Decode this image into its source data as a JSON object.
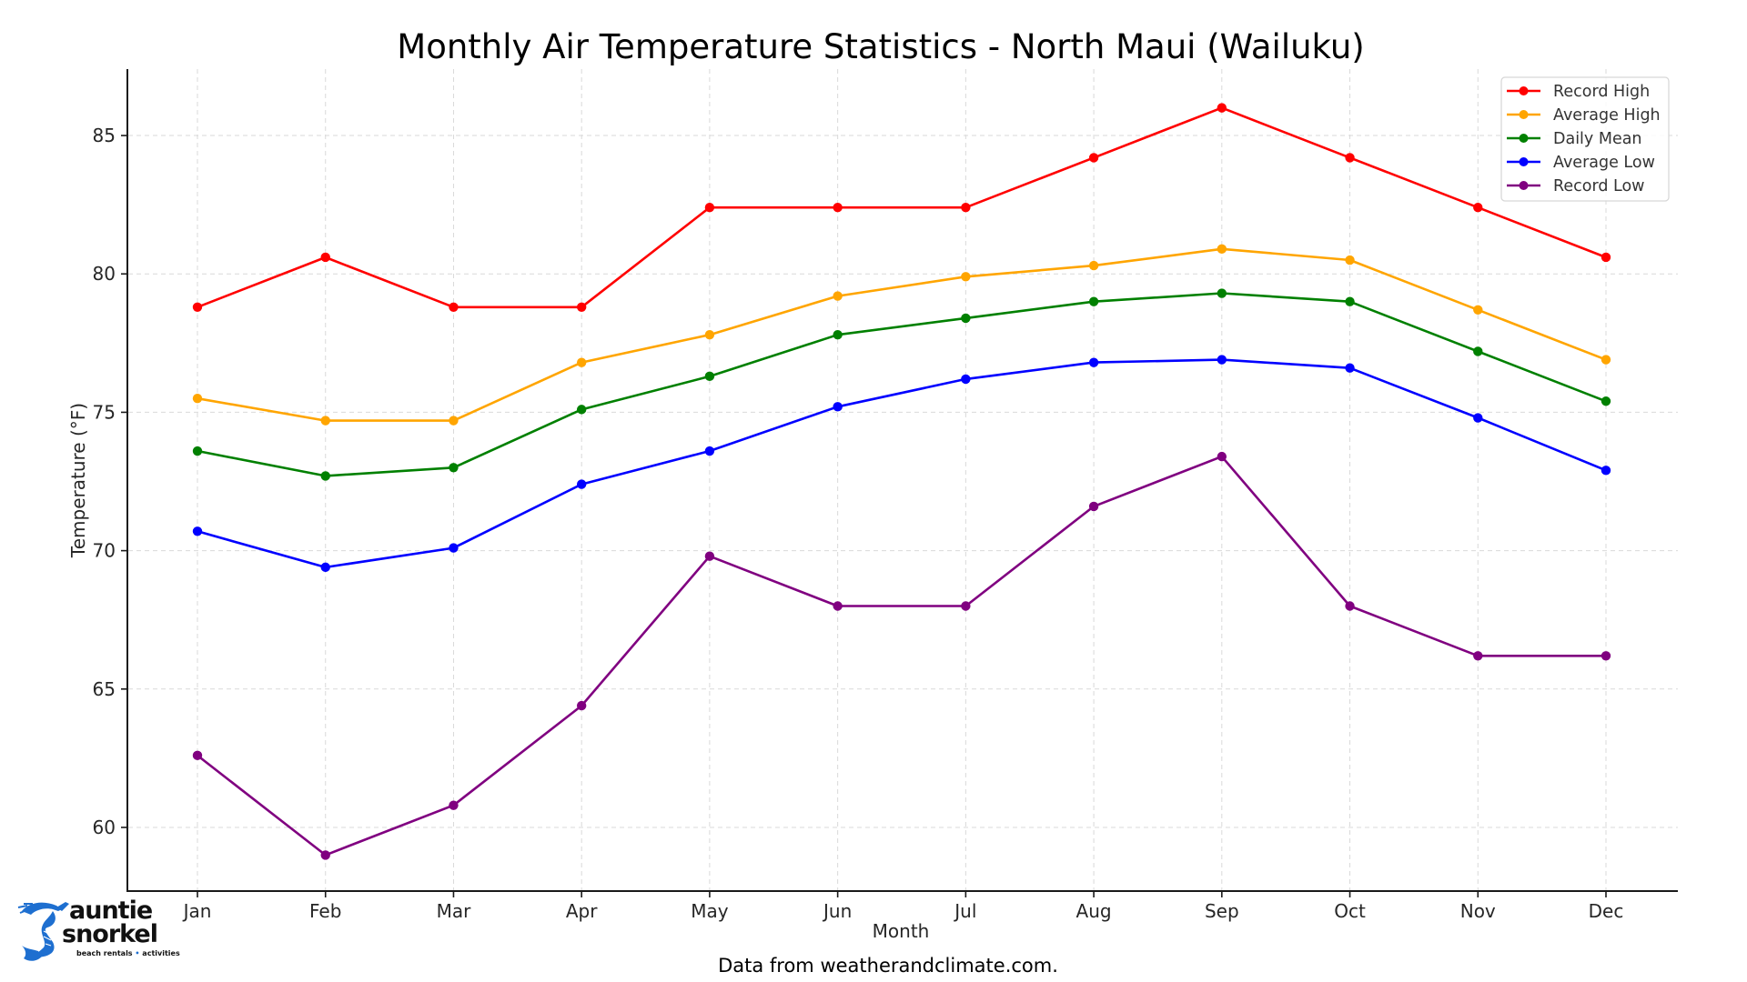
{
  "chart_data": {
    "type": "line",
    "title": "Monthly Air Temperature Statistics - North Maui (Wailuku)",
    "xlabel": "Month",
    "ylabel": "Temperature (°F)",
    "categories": [
      "Jan",
      "Feb",
      "Mar",
      "Apr",
      "May",
      "Jun",
      "Jul",
      "Aug",
      "Sep",
      "Oct",
      "Nov",
      "Dec"
    ],
    "ylim": [
      57.7,
      87.4
    ],
    "yticks": [
      60,
      65,
      70,
      75,
      80,
      85
    ],
    "grid": true,
    "legend_position": "top-right",
    "series": [
      {
        "name": "Record High",
        "color": "#ff0000",
        "values": [
          78.8,
          80.6,
          78.8,
          78.8,
          82.4,
          82.4,
          82.4,
          84.2,
          86.0,
          84.2,
          82.4,
          80.6
        ]
      },
      {
        "name": "Average High",
        "color": "#ffa500",
        "values": [
          75.5,
          74.7,
          74.7,
          76.8,
          77.8,
          79.2,
          79.9,
          80.3,
          80.9,
          80.5,
          78.7,
          76.9
        ]
      },
      {
        "name": "Daily Mean",
        "color": "#008000",
        "values": [
          73.6,
          72.7,
          73.0,
          75.1,
          76.3,
          77.8,
          78.4,
          79.0,
          79.3,
          79.0,
          77.2,
          75.4
        ]
      },
      {
        "name": "Average Low",
        "color": "#0000ff",
        "values": [
          70.7,
          69.4,
          70.1,
          72.4,
          73.6,
          75.2,
          76.2,
          76.8,
          76.9,
          76.6,
          74.8,
          72.9
        ]
      },
      {
        "name": "Record Low",
        "color": "#800080",
        "values": [
          62.6,
          59.0,
          60.8,
          64.4,
          69.8,
          68.0,
          68.0,
          71.6,
          73.4,
          68.0,
          66.2,
          66.2
        ]
      }
    ],
    "source_note": "Data from weatherandclimate.com."
  },
  "logo": {
    "line1": "auntie",
    "line2": "snorkel",
    "tagline_left": "beach rentals",
    "tagline_dot": "•",
    "tagline_right": "activities",
    "brand_color": "#1e6fd0"
  }
}
